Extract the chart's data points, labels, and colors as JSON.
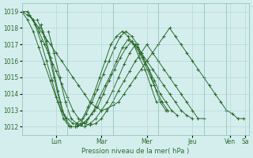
{
  "background_color": "#d4eeee",
  "line_color": "#2d6b2d",
  "grid_color": "#b8d8d8",
  "ylabel_ticks": [
    1012,
    1013,
    1014,
    1015,
    1016,
    1017,
    1018,
    1019
  ],
  "xlabels": [
    "Lun",
    "Mar",
    "Mer",
    "Jeu",
    "Ven",
    "Sa"
  ],
  "xlabel_text": "Pression niveau de la mer( hPa )",
  "xlim": [
    0,
    120
  ],
  "ylim": [
    1011.5,
    1019.5
  ],
  "series": [
    [
      1019.0,
      1019.0,
      1018.5,
      1018.0,
      1017.5,
      1017.0,
      1016.5,
      1016.0,
      1015.5,
      1015.0,
      1014.5,
      1014.0,
      1013.5,
      1013.2,
      1013.0,
      1013.1,
      1013.3,
      1013.5,
      1014.0,
      1014.5,
      1015.0,
      1015.5,
      1016.0,
      1016.5,
      1017.0,
      1017.5,
      1018.0,
      1017.5,
      1017.0,
      1016.5,
      1016.0,
      1015.5,
      1015.0,
      1014.5,
      1014.0,
      1013.5,
      1013.0,
      1012.8,
      1012.5,
      1012.5
    ],
    [
      1019.0,
      1018.8,
      1018.5,
      1017.8,
      1017.0,
      1016.2,
      1015.4,
      1014.6,
      1013.8,
      1013.0,
      1012.5,
      1012.2,
      1012.1,
      1012.2,
      1012.5,
      1013.0,
      1013.5,
      1014.2,
      1014.8,
      1015.4,
      1016.0,
      1016.5,
      1017.0,
      1016.5,
      1016.0,
      1015.5,
      1015.0,
      1014.5,
      1014.0,
      1013.5,
      1013.0,
      1012.5,
      1012.5
    ],
    [
      1019.0,
      1018.5,
      1017.8,
      1016.8,
      1015.8,
      1014.8,
      1013.8,
      1013.0,
      1012.5,
      1012.2,
      1012.1,
      1012.0,
      1012.2,
      1012.5,
      1013.0,
      1013.5,
      1014.2,
      1015.0,
      1015.8,
      1016.5,
      1017.0,
      1016.5,
      1016.0,
      1015.5,
      1015.0,
      1014.5,
      1014.0,
      1013.5,
      1013.0,
      1012.7,
      1012.5
    ],
    [
      1018.8,
      1018.2,
      1017.2,
      1016.0,
      1014.8,
      1013.5,
      1012.5,
      1012.0,
      1012.0,
      1012.1,
      1012.3,
      1012.8,
      1013.2,
      1014.0,
      1014.8,
      1015.5,
      1016.2,
      1016.8,
      1017.2,
      1016.8,
      1016.2,
      1015.5,
      1014.8,
      1014.0,
      1013.5,
      1013.0,
      1012.7
    ],
    [
      1018.5,
      1017.8,
      1016.5,
      1015.0,
      1013.5,
      1012.5,
      1012.0,
      1012.0,
      1012.2,
      1012.5,
      1013.0,
      1013.8,
      1014.5,
      1015.2,
      1016.0,
      1016.8,
      1017.3,
      1017.0,
      1016.5,
      1015.8,
      1015.0,
      1014.2,
      1013.5,
      1013.0
    ],
    [
      1018.2,
      1017.2,
      1015.8,
      1014.2,
      1012.8,
      1012.0,
      1012.0,
      1012.2,
      1012.8,
      1013.5,
      1014.3,
      1015.2,
      1016.0,
      1016.8,
      1017.5,
      1017.8,
      1017.5,
      1017.0,
      1016.2,
      1015.5,
      1014.5,
      1013.5,
      1013.0
    ],
    [
      1017.8,
      1016.5,
      1015.0,
      1013.5,
      1012.5,
      1012.2,
      1012.5,
      1013.2,
      1014.0,
      1015.0,
      1016.0,
      1017.0,
      1017.5,
      1017.8,
      1017.5,
      1017.0,
      1016.2,
      1015.5,
      1014.5,
      1013.5
    ]
  ],
  "series_x_starts": [
    0,
    0,
    0,
    4,
    8,
    10,
    14
  ],
  "day_positions": [
    18,
    42,
    66,
    90,
    110,
    118
  ],
  "day_labels": [
    "Lun",
    "Mar",
    "Mer",
    "Jeu",
    "Ven",
    "Sa"
  ]
}
